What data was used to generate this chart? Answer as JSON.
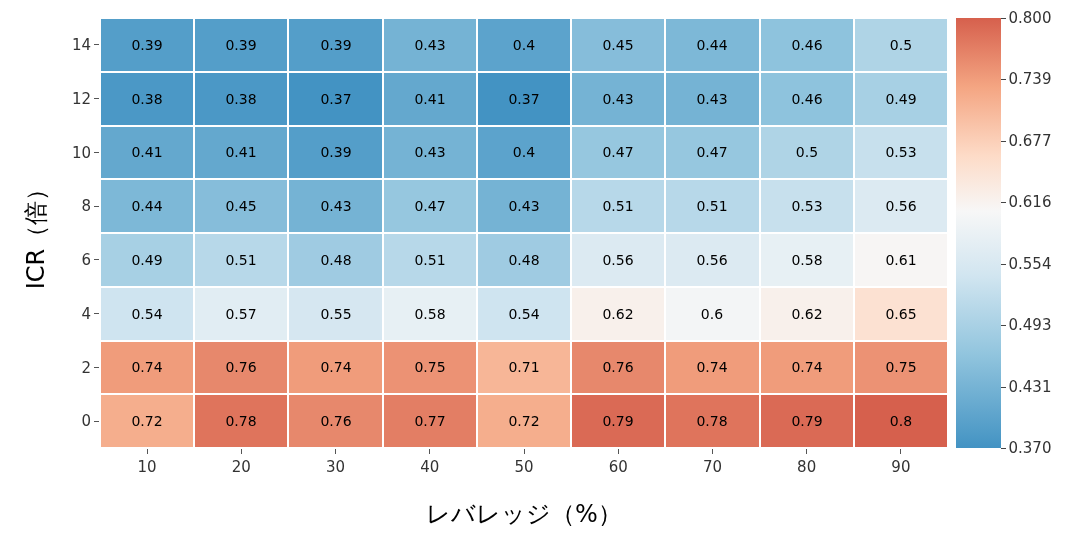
{
  "chart_data": {
    "type": "heatmap",
    "xlabel": "レバレッジ（%）",
    "ylabel": "ICR（倍）",
    "categories": [
      "10",
      "20",
      "30",
      "40",
      "50",
      "60",
      "70",
      "80",
      "90"
    ],
    "y_categories": [
      "14",
      "12",
      "10",
      "8",
      "6",
      "4",
      "2",
      "0"
    ],
    "cells": [
      [
        0.39,
        0.39,
        0.39,
        0.43,
        0.4,
        0.45,
        0.44,
        0.46,
        0.5
      ],
      [
        0.38,
        0.38,
        0.37,
        0.41,
        0.37,
        0.43,
        0.43,
        0.46,
        0.49
      ],
      [
        0.41,
        0.41,
        0.39,
        0.43,
        0.4,
        0.47,
        0.47,
        0.5,
        0.53
      ],
      [
        0.44,
        0.45,
        0.43,
        0.47,
        0.43,
        0.51,
        0.51,
        0.53,
        0.56
      ],
      [
        0.49,
        0.51,
        0.48,
        0.51,
        0.48,
        0.56,
        0.56,
        0.58,
        0.61
      ],
      [
        0.54,
        0.57,
        0.55,
        0.58,
        0.54,
        0.62,
        0.6,
        0.62,
        0.65
      ],
      [
        0.74,
        0.76,
        0.74,
        0.75,
        0.71,
        0.76,
        0.74,
        0.74,
        0.75
      ],
      [
        0.72,
        0.78,
        0.76,
        0.77,
        0.72,
        0.79,
        0.78,
        0.79,
        0.8
      ]
    ],
    "clim": [
      0.37,
      0.8
    ],
    "cticks": [
      {
        "value": 0.37,
        "label": "0.370"
      },
      {
        "value": 0.431,
        "label": "0.431"
      },
      {
        "value": 0.493,
        "label": "0.493"
      },
      {
        "value": 0.554,
        "label": "0.554"
      },
      {
        "value": 0.616,
        "label": "0.616"
      },
      {
        "value": 0.677,
        "label": "0.677"
      },
      {
        "value": 0.739,
        "label": "0.739"
      },
      {
        "value": 0.8,
        "label": "0.800"
      }
    ],
    "data_labels": true
  }
}
